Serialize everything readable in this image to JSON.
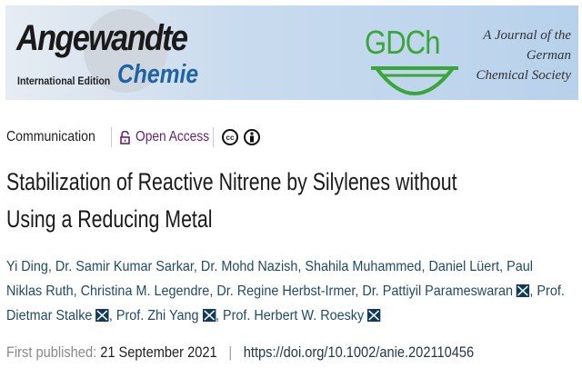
{
  "banner": {
    "journal_main": "Angewandte",
    "journal_edition": "International Edition",
    "journal_sub": "Chemie",
    "society_logo": "GDCh",
    "society_tagline": [
      "A Journal of the",
      "German",
      "Chemical Society"
    ]
  },
  "meta": {
    "type": "Communication",
    "access": "Open Access",
    "license_icons": [
      "cc-icon",
      "by-icon"
    ],
    "cc_text": "cc"
  },
  "title": [
    "Stabilization of Reactive Nitrene by Silylenes without",
    "Using a Reducing Metal"
  ],
  "authors": [
    {
      "name": "Yi Ding",
      "email": false
    },
    {
      "name": "Dr. Samir Kumar Sarkar",
      "email": false
    },
    {
      "name": "Dr. Mohd Nazish",
      "email": false
    },
    {
      "name": "Shahila Muhammed",
      "email": false
    },
    {
      "name": "Daniel Lüert",
      "email": false
    },
    {
      "name": "Paul Niklas Ruth",
      "email": false
    },
    {
      "name": "Christina M. Legendre",
      "email": false
    },
    {
      "name": "Dr. Regine Herbst-Irmer",
      "email": false
    },
    {
      "name": "Dr. Pattiyil Parameswaran",
      "email": true
    },
    {
      "name": "Prof. Dietmar Stalke",
      "email": true
    },
    {
      "name": "Prof. Zhi Yang",
      "email": true
    },
    {
      "name": "Prof. Herbert W. Roesky",
      "email": true
    }
  ],
  "published": {
    "label": "First published:",
    "date": "21 September 2021",
    "separator": "|",
    "doi": "https://doi.org/10.1002/anie.202110456"
  },
  "colors": {
    "open_access": "#6a2070",
    "author_link": "#1f4a6b",
    "gdch_green": "#3aa63a",
    "chemie_blue": "#1d63a6"
  }
}
